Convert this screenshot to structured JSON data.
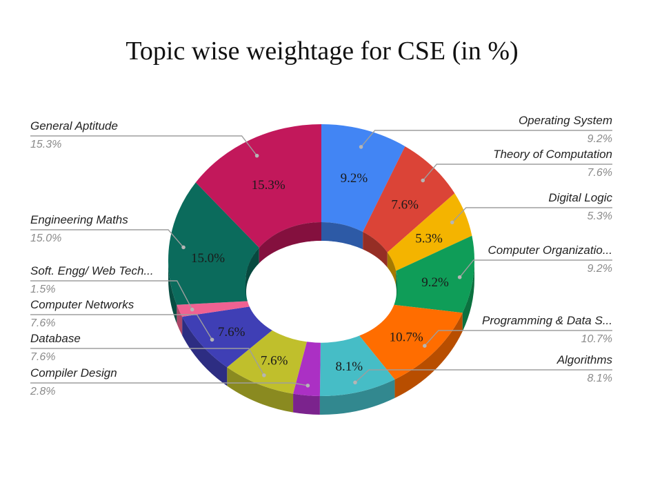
{
  "chart_data": {
    "type": "pie",
    "variant": "3d-donut",
    "title": "Topic wise weightage for CSE (in %)",
    "unit": "%",
    "slices": [
      {
        "name": "Operating System",
        "legend_text": "Operating System",
        "value": 9.2,
        "label": "9.2%",
        "color": "#4285f4",
        "side": "right"
      },
      {
        "name": "Theory of Computation",
        "legend_text": "Theory of Computation",
        "value": 7.6,
        "label": "7.6%",
        "color": "#db4437",
        "side": "right"
      },
      {
        "name": "Digital Logic",
        "legend_text": "Digital Logic",
        "value": 5.3,
        "label": "5.3%",
        "color": "#f4b400",
        "side": "right"
      },
      {
        "name": "Computer Organization",
        "legend_text": "Computer Organizatio...",
        "value": 9.2,
        "label": "9.2%",
        "color": "#0f9d58",
        "side": "right"
      },
      {
        "name": "Programming & Data Structures",
        "legend_text": "Programming & Data S...",
        "value": 10.7,
        "label": "10.7%",
        "color": "#ff6d00",
        "side": "right"
      },
      {
        "name": "Algorithms",
        "legend_text": "Algorithms",
        "value": 8.1,
        "label": "8.1%",
        "color": "#46bdc6",
        "side": "right"
      },
      {
        "name": "Compiler Design",
        "legend_text": "Compiler Design",
        "value": 2.8,
        "label": "2.8%",
        "color": "#ab30c4",
        "side": "left",
        "inline_label": false
      },
      {
        "name": "Database",
        "legend_text": "Database",
        "value": 7.6,
        "label": "7.6%",
        "color": "#c0bf2c",
        "side": "left"
      },
      {
        "name": "Computer Networks",
        "legend_text": "Computer Networks",
        "value": 7.6,
        "label": "7.6%",
        "color": "#3f3fb5",
        "side": "left"
      },
      {
        "name": "Soft. Engg/ Web Technologies",
        "legend_text": "Soft. Engg/ Web Tech...",
        "value": 1.5,
        "label": "1.5%",
        "color": "#f06292",
        "side": "left",
        "inline_label": false
      },
      {
        "name": "Engineering Maths",
        "legend_text": "Engineering Maths",
        "value": 15.0,
        "label": "15.0%",
        "color": "#0b6b5c",
        "side": "left"
      },
      {
        "name": "General Aptitude",
        "legend_text": "General Aptitude",
        "value": 15.3,
        "label": "15.3%",
        "color": "#c2185b",
        "side": "left"
      }
    ],
    "legend": "callouts-both-sides"
  }
}
